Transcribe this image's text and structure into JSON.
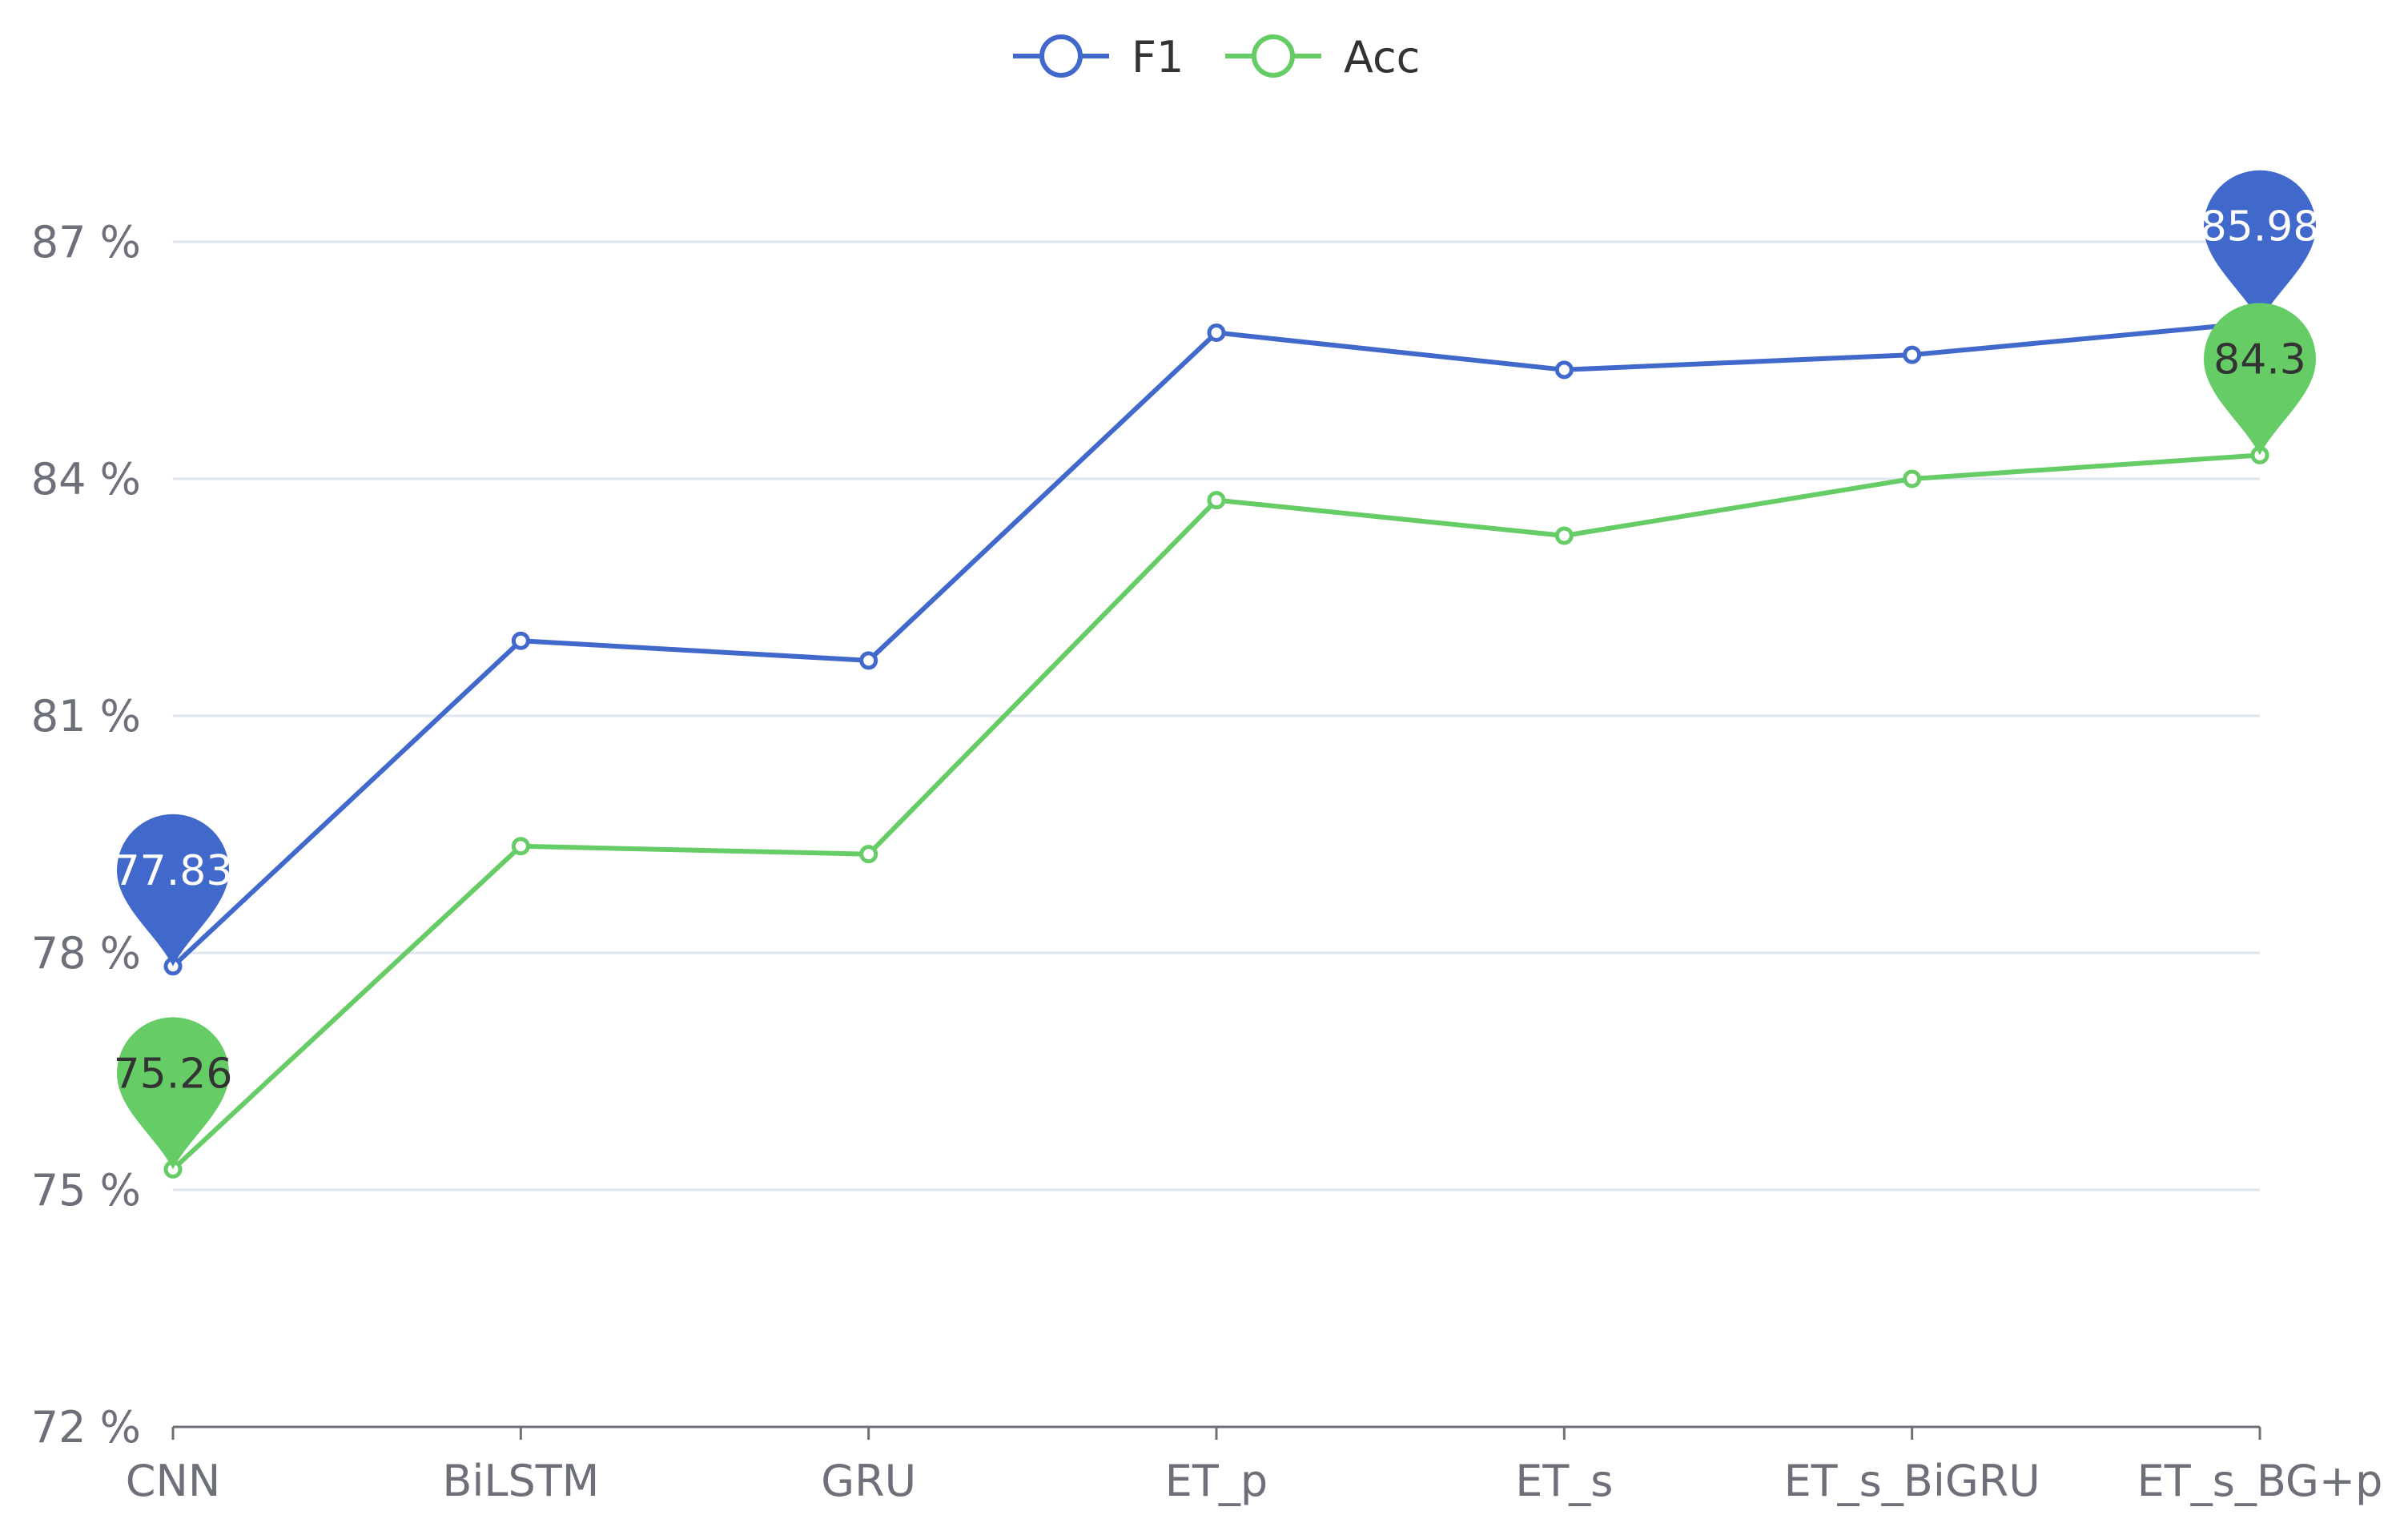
{
  "chart_data": {
    "type": "line",
    "title": "",
    "xlabel": "",
    "ylabel": "",
    "categories": [
      "CNN",
      "BiLSTM",
      "GRU",
      "ET_p",
      "ET_s",
      "ET_s_BiGRU",
      "ET_s_BG+p"
    ],
    "ylim": [
      72,
      87
    ],
    "yticks": [
      72,
      75,
      78,
      81,
      84,
      87
    ],
    "ytick_suffix": " %",
    "grid": true,
    "legend_position": "top-center",
    "series": [
      {
        "name": "F1",
        "color": "#4169cc",
        "values": [
          77.83,
          81.95,
          81.7,
          85.85,
          85.38,
          85.57,
          85.98
        ],
        "markers": [
          {
            "label": "77.83",
            "index": 0
          },
          {
            "label": "85.98",
            "index": 6
          }
        ]
      },
      {
        "name": "Acc",
        "color": "#66cc66",
        "values": [
          75.26,
          79.35,
          79.25,
          83.73,
          83.28,
          84.0,
          84.3
        ],
        "markers": [
          {
            "label": "75.26",
            "index": 0
          },
          {
            "label": "84.3",
            "index": 6
          }
        ]
      }
    ]
  }
}
